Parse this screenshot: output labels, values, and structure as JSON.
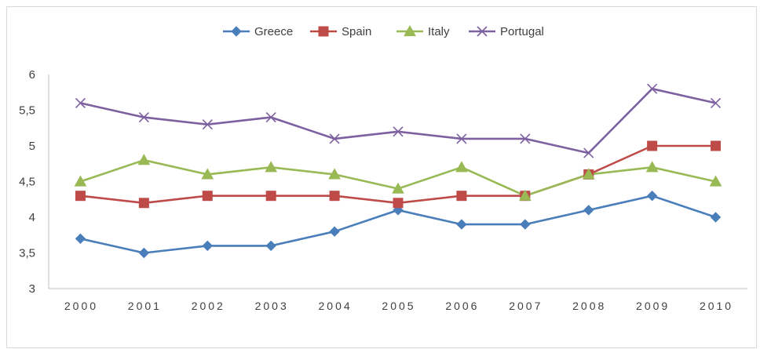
{
  "chart_data": {
    "type": "line",
    "title": "",
    "xlabel": "",
    "ylabel": "",
    "categories": [
      "2000",
      "2001",
      "2002",
      "2003",
      "2004",
      "2005",
      "2006",
      "2007",
      "2008",
      "2009",
      "2010"
    ],
    "ylim": [
      3,
      6
    ],
    "yticks": [
      3,
      3.5,
      4,
      4.5,
      5,
      5.5,
      6
    ],
    "ytick_labels": [
      "3",
      "3,5",
      "4",
      "4,5",
      "5",
      "5,5",
      "6"
    ],
    "grid": false,
    "legend_position": "top",
    "series": [
      {
        "name": "Greece",
        "color": "#4a7ebb",
        "marker": "diamond",
        "values": [
          3.7,
          3.5,
          3.6,
          3.6,
          3.8,
          4.1,
          3.9,
          3.9,
          4.1,
          4.3,
          4.0
        ]
      },
      {
        "name": "Spain",
        "color": "#be4b48",
        "marker": "square",
        "values": [
          4.3,
          4.2,
          4.3,
          4.3,
          4.3,
          4.2,
          4.3,
          4.3,
          4.6,
          5.0,
          5.0
        ]
      },
      {
        "name": "Italy",
        "color": "#98b954",
        "marker": "triangle",
        "values": [
          4.5,
          4.8,
          4.6,
          4.7,
          4.6,
          4.4,
          4.7,
          4.3,
          4.6,
          4.7,
          4.5
        ]
      },
      {
        "name": "Portugal",
        "color": "#7d60a0",
        "marker": "x",
        "values": [
          5.6,
          5.4,
          5.3,
          5.4,
          5.1,
          5.2,
          5.1,
          5.1,
          4.9,
          5.8,
          5.6
        ]
      }
    ]
  }
}
